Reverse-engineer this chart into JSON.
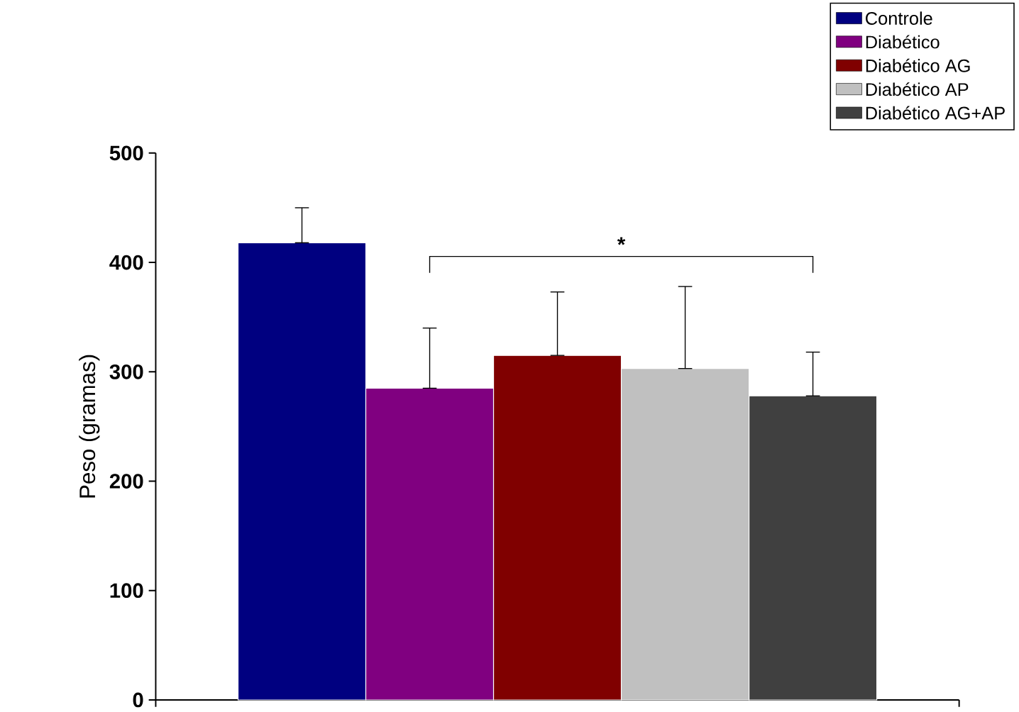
{
  "chart_data": {
    "type": "bar",
    "ylabel": "Peso (gramas)",
    "categories": [
      null
    ],
    "series": [
      {
        "name": "Controle",
        "color": "#000080",
        "values": [
          418
        ],
        "errors": [
          [
            418,
            450
          ]
        ]
      },
      {
        "name": "Diabético",
        "color": "#800080",
        "values": [
          285
        ],
        "errors": [
          [
            285,
            340
          ]
        ]
      },
      {
        "name": "Diabético AG",
        "color": "#800000",
        "values": [
          315
        ],
        "errors": [
          [
            315,
            373
          ]
        ]
      },
      {
        "name": "Diabético AP",
        "color": "#c0c0c0",
        "values": [
          303
        ],
        "errors": [
          [
            303,
            378
          ]
        ]
      },
      {
        "name": "Diabético AG+AP",
        "color": "#404040",
        "values": [
          278
        ],
        "errors": [
          [
            278,
            318
          ]
        ]
      }
    ],
    "ylim": [
      0,
      500
    ],
    "yticks": [
      0,
      100,
      200,
      300,
      400,
      500
    ],
    "legend": "top right",
    "annotations": [
      "*"
    ]
  }
}
